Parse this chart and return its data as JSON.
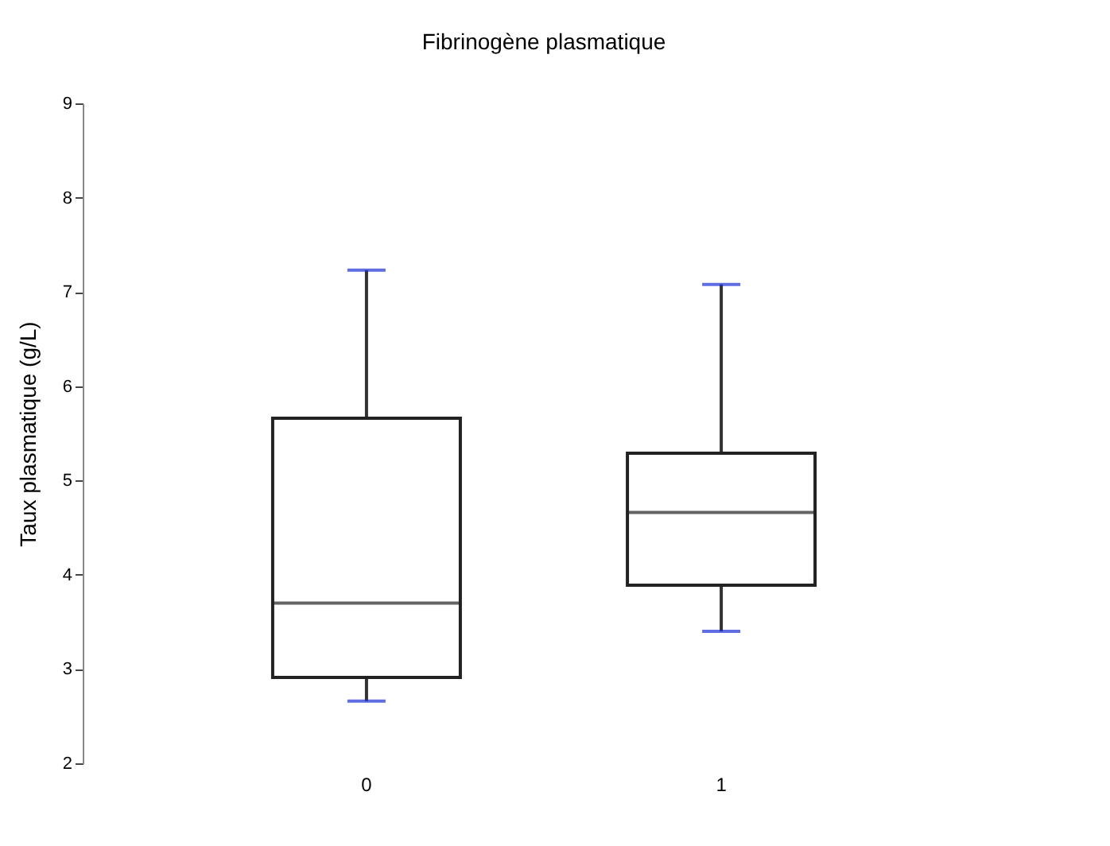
{
  "chart_data": {
    "type": "box",
    "title": "Fibrinogène plasmatique",
    "ylabel": "Taux plasmatique (g/L)",
    "categories": [
      "0",
      "1"
    ],
    "boxes": [
      {
        "low": 2.66,
        "q1": 2.91,
        "median": 3.7,
        "q3": 5.66,
        "high": 7.23
      },
      {
        "low": 3.4,
        "q1": 3.89,
        "median": 4.66,
        "q3": 5.29,
        "high": 7.08
      }
    ],
    "ylim": [
      2,
      9
    ],
    "yticks": [
      2,
      3,
      4,
      5,
      6,
      7,
      8,
      9
    ],
    "grid": false
  }
}
